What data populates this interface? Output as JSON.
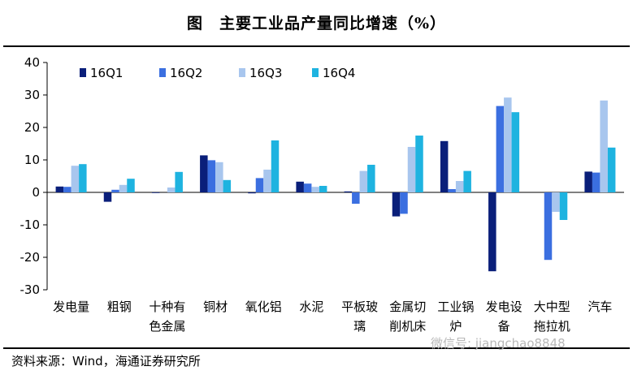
{
  "header": {
    "title": "图　主要工业品产量同比增速（%）"
  },
  "footer": {
    "source": "资料来源：Wind，海通证券研究所",
    "watermark": "微信号: jiangchao8848"
  },
  "chart_data": {
    "type": "bar",
    "title": "图　主要工业品产量同比增速（%）",
    "xlabel": "",
    "ylabel": "",
    "ylim": [
      -30,
      40
    ],
    "yticks": [
      "40",
      "30",
      "20",
      "10",
      "0",
      "-10",
      "-20",
      "-30"
    ],
    "ytick_values": [
      40,
      30,
      20,
      10,
      0,
      -10,
      -20,
      -30
    ],
    "grid": false,
    "legend_position": "top-left",
    "categories": [
      [
        "发电量"
      ],
      [
        "粗钢"
      ],
      [
        "十种有",
        "色金属"
      ],
      [
        "铜材"
      ],
      [
        "氧化铝"
      ],
      [
        "水泥"
      ],
      [
        "平板玻",
        "璃"
      ],
      [
        "金属切",
        "削机床"
      ],
      [
        "工业锅",
        "炉"
      ],
      [
        "发电设",
        "备"
      ],
      [
        "大中型",
        "拖拉机"
      ],
      [
        "汽车"
      ]
    ],
    "series": [
      {
        "name": "16Q1",
        "color": "#0a1f7a",
        "values": [
          1.8,
          -2.9,
          -0.2,
          11.4,
          -0.3,
          3.3,
          0.3,
          -7.4,
          15.8,
          -24.3,
          0.0,
          6.4
        ]
      },
      {
        "name": "16Q2",
        "color": "#3b6fe0",
        "values": [
          1.7,
          0.8,
          0.0,
          9.9,
          4.4,
          2.7,
          -3.5,
          -6.6,
          1.0,
          26.6,
          -20.8,
          6.1
        ]
      },
      {
        "name": "16Q3",
        "color": "#a8c6ee",
        "values": [
          8.2,
          2.3,
          1.5,
          9.3,
          7.0,
          1.7,
          6.6,
          14.0,
          3.5,
          29.2,
          -6.0,
          28.3
        ]
      },
      {
        "name": "16Q4",
        "color": "#1eb3e0",
        "values": [
          8.7,
          4.2,
          6.3,
          3.8,
          16.0,
          2.0,
          8.5,
          17.5,
          6.6,
          24.7,
          -8.5,
          13.8
        ]
      }
    ]
  }
}
